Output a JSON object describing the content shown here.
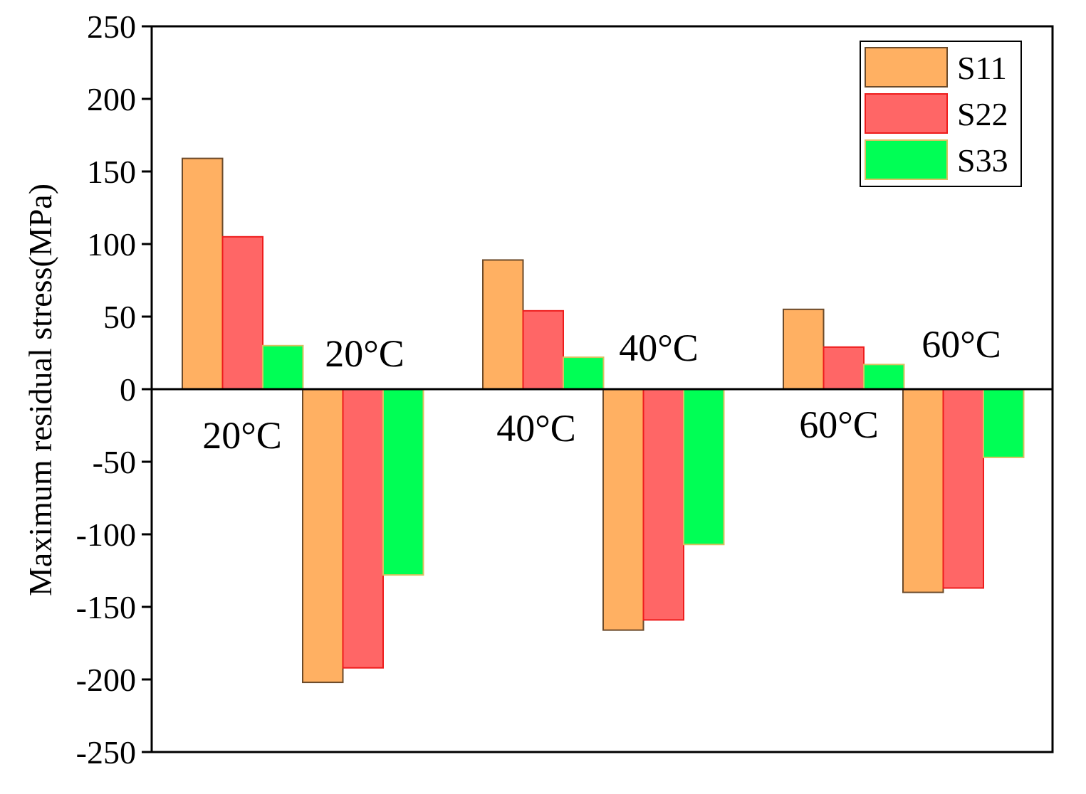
{
  "chart_data": {
    "type": "bar",
    "title": "",
    "xlabel": "",
    "ylabel": "Maximum residual stress(MPa)",
    "ylim": [
      -250,
      250
    ],
    "yticks": [
      250,
      200,
      150,
      100,
      50,
      0,
      -50,
      -100,
      -150,
      -200,
      -250
    ],
    "grid": false,
    "legend_position": "top-right",
    "groups": [
      {
        "label": "20°C",
        "sign": "positive"
      },
      {
        "label": "20°C",
        "sign": "negative"
      },
      {
        "label": "40°C",
        "sign": "positive"
      },
      {
        "label": "40°C",
        "sign": "negative"
      },
      {
        "label": "60°C",
        "sign": "positive"
      },
      {
        "label": "60°C",
        "sign": "negative"
      }
    ],
    "series": [
      {
        "name": "S11",
        "color": "#FFB062",
        "edge": "#6b4a2a",
        "values": [
          159,
          -202,
          89,
          -166,
          55,
          -140
        ]
      },
      {
        "name": "S22",
        "color": "#FF6666",
        "edge": "#ee1c1c",
        "values": [
          105,
          -192,
          54,
          -159,
          29,
          -137
        ]
      },
      {
        "name": "S33",
        "color": "#00FF55",
        "edge": "#d8c060",
        "values": [
          30,
          -128,
          22,
          -107,
          17,
          -47
        ]
      }
    ]
  }
}
